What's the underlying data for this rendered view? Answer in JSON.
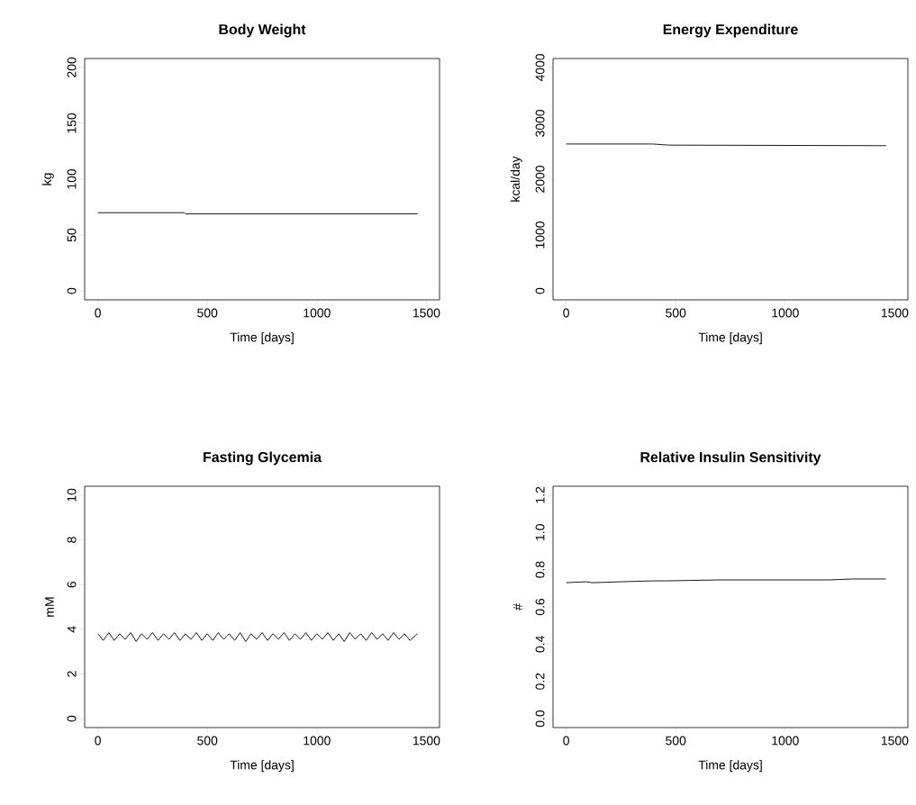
{
  "chart_data": [
    {
      "type": "line",
      "title": "Body Weight",
      "xlabel": "Time [days]",
      "ylabel": "kg",
      "color": "#000000",
      "x": [
        0,
        395,
        400,
        1460
      ],
      "values": [
        70,
        70,
        69,
        69
      ],
      "xlim": [
        -60,
        1560
      ],
      "ylim": [
        -8,
        208
      ],
      "xticks": [
        0,
        500,
        1000,
        1500
      ],
      "yticks": [
        0,
        50,
        100,
        150,
        200
      ]
    },
    {
      "type": "line",
      "title": "Energy Expenditure",
      "xlabel": "Time [days]",
      "ylabel": "kcal/day",
      "color": "#000000",
      "x": [
        0,
        395,
        470,
        1460
      ],
      "values": [
        2630,
        2630,
        2610,
        2600
      ],
      "xlim": [
        -60,
        1560
      ],
      "ylim": [
        -160,
        4160
      ],
      "xticks": [
        0,
        500,
        1000,
        1500
      ],
      "yticks": [
        0,
        1000,
        2000,
        3000,
        4000
      ]
    },
    {
      "type": "line",
      "title": "Fasting Glycemia",
      "xlabel": "Time [days]",
      "ylabel": "mM",
      "color": "#000000",
      "x": [
        0,
        25,
        50,
        75,
        100,
        125,
        150,
        175,
        200,
        225,
        250,
        275,
        300,
        325,
        350,
        375,
        400,
        425,
        450,
        475,
        500,
        525,
        550,
        575,
        600,
        625,
        650,
        675,
        700,
        725,
        750,
        775,
        800,
        825,
        850,
        875,
        900,
        925,
        950,
        975,
        1000,
        1025,
        1050,
        1075,
        1100,
        1125,
        1150,
        1175,
        1200,
        1225,
        1250,
        1275,
        1300,
        1325,
        1350,
        1375,
        1400,
        1425,
        1460
      ],
      "values": [
        3.8,
        3.5,
        3.85,
        3.5,
        3.8,
        3.55,
        3.85,
        3.45,
        3.8,
        3.55,
        3.85,
        3.5,
        3.8,
        3.55,
        3.85,
        3.5,
        3.8,
        3.55,
        3.85,
        3.5,
        3.8,
        3.5,
        3.85,
        3.55,
        3.8,
        3.5,
        3.85,
        3.45,
        3.8,
        3.55,
        3.85,
        3.5,
        3.8,
        3.55,
        3.85,
        3.5,
        3.8,
        3.55,
        3.85,
        3.5,
        3.8,
        3.55,
        3.85,
        3.5,
        3.8,
        3.45,
        3.85,
        3.55,
        3.8,
        3.5,
        3.85,
        3.55,
        3.8,
        3.5,
        3.85,
        3.55,
        3.8,
        3.5,
        3.8
      ],
      "xlim": [
        -60,
        1560
      ],
      "ylim": [
        -0.4,
        10.4
      ],
      "xticks": [
        0,
        500,
        1000,
        1500
      ],
      "yticks": [
        0,
        2,
        4,
        6,
        8,
        10
      ]
    },
    {
      "type": "line",
      "title": "Relative Insulin Sensitivity",
      "xlabel": "Time [days]",
      "ylabel": "#",
      "color": "#000000",
      "x": [
        0,
        90,
        120,
        250,
        400,
        460,
        700,
        1200,
        1310,
        1460
      ],
      "values": [
        0.73,
        0.735,
        0.73,
        0.735,
        0.74,
        0.74,
        0.745,
        0.745,
        0.75,
        0.75
      ],
      "xlim": [
        -60,
        1560
      ],
      "ylim": [
        -0.048,
        1.248
      ],
      "xticks": [
        0,
        500,
        1000,
        1500
      ],
      "yticks": [
        {
          "value": 0,
          "label": "0.0"
        },
        0.2,
        0.4,
        0.6,
        0.8,
        {
          "value": 1,
          "label": "1.0"
        },
        1.2
      ]
    }
  ]
}
